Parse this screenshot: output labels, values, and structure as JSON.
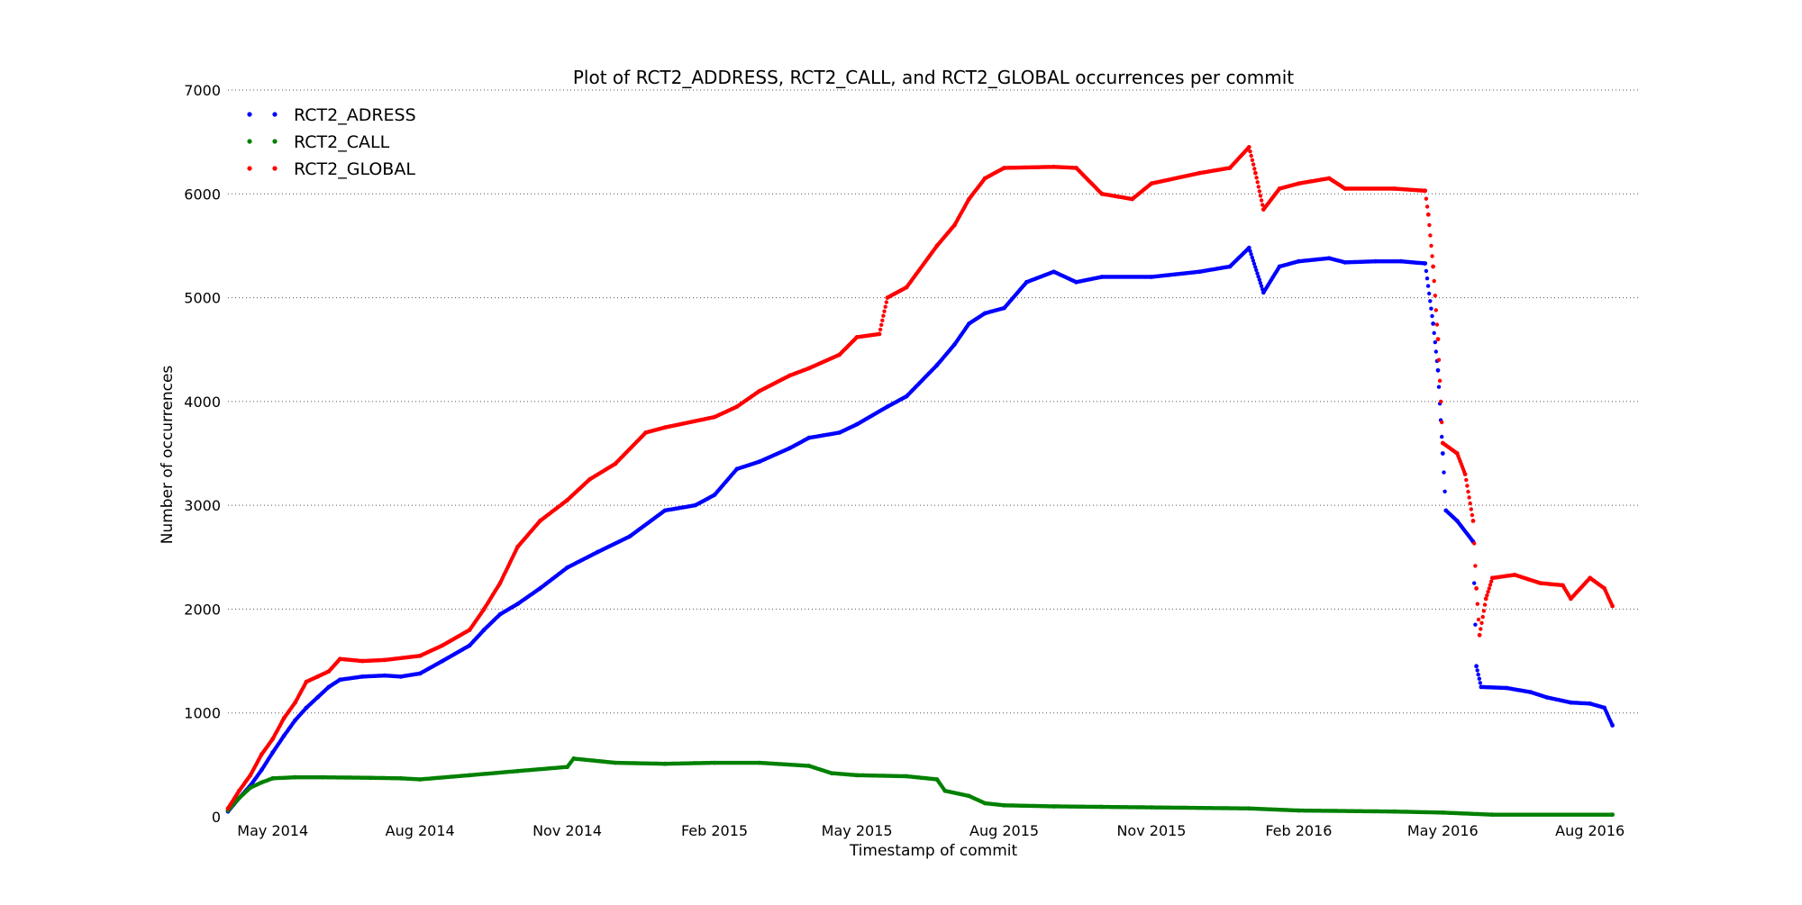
{
  "chart_data": {
    "type": "scatter",
    "title": "Plot of RCT2_ADDRESS, RCT2_CALL, and RCT2_GLOBAL occurrences per commit",
    "xlabel": "Timestamp of commit",
    "ylabel": "Number of occurrences",
    "xlim": [
      "2014-04-03",
      "2016-08-31"
    ],
    "ylim": [
      0,
      7000
    ],
    "x_ticks": [
      {
        "date": "2014-05-01",
        "label": "May 2014"
      },
      {
        "date": "2014-08-01",
        "label": "Aug 2014"
      },
      {
        "date": "2014-11-01",
        "label": "Nov 2014"
      },
      {
        "date": "2015-02-01",
        "label": "Feb 2015"
      },
      {
        "date": "2015-05-01",
        "label": "May 2015"
      },
      {
        "date": "2015-08-01",
        "label": "Aug 2015"
      },
      {
        "date": "2015-11-01",
        "label": "Nov 2015"
      },
      {
        "date": "2016-02-01",
        "label": "Feb 2016"
      },
      {
        "date": "2016-05-01",
        "label": "May 2016"
      },
      {
        "date": "2016-08-01",
        "label": "Aug 2016"
      }
    ],
    "y_ticks": [
      {
        "value": 0,
        "label": "0"
      },
      {
        "value": 1000,
        "label": "1000"
      },
      {
        "value": 2000,
        "label": "2000"
      },
      {
        "value": 3000,
        "label": "3000"
      },
      {
        "value": 4000,
        "label": "4000"
      },
      {
        "value": 5000,
        "label": "5000"
      },
      {
        "value": 6000,
        "label": "6000"
      },
      {
        "value": 7000,
        "label": "7000"
      }
    ],
    "grid": "horizontal dotted",
    "legend": "top-left",
    "series": [
      {
        "name": "RCT2_ADRESS",
        "color": "#0000ff",
        "points": [
          [
            "2014-04-03",
            50
          ],
          [
            "2014-04-10",
            180
          ],
          [
            "2014-04-17",
            300
          ],
          [
            "2014-04-24",
            450
          ],
          [
            "2014-05-01",
            620
          ],
          [
            "2014-05-08",
            780
          ],
          [
            "2014-05-15",
            930
          ],
          [
            "2014-05-22",
            1050
          ],
          [
            "2014-05-29",
            1150
          ],
          [
            "2014-06-05",
            1250
          ],
          [
            "2014-06-12",
            1320
          ],
          [
            "2014-06-26",
            1350
          ],
          [
            "2014-07-10",
            1360
          ],
          [
            "2014-07-20",
            1350
          ],
          [
            "2014-08-01",
            1380
          ],
          [
            "2014-08-15",
            1500
          ],
          [
            "2014-09-01",
            1650
          ],
          [
            "2014-09-10",
            1800
          ],
          [
            "2014-09-20",
            1950
          ],
          [
            "2014-10-01",
            2050
          ],
          [
            "2014-10-15",
            2200
          ],
          [
            "2014-11-01",
            2400
          ],
          [
            "2014-11-20",
            2550
          ],
          [
            "2014-12-10",
            2700
          ],
          [
            "2015-01-01",
            2950
          ],
          [
            "2015-01-20",
            3000
          ],
          [
            "2015-02-01",
            3100
          ],
          [
            "2015-02-15",
            3350
          ],
          [
            "2015-03-01",
            3420
          ],
          [
            "2015-03-20",
            3550
          ],
          [
            "2015-04-01",
            3650
          ],
          [
            "2015-04-20",
            3700
          ],
          [
            "2015-05-01",
            3780
          ],
          [
            "2015-05-20",
            3950
          ],
          [
            "2015-06-01",
            4050
          ],
          [
            "2015-06-20",
            4350
          ],
          [
            "2015-07-01",
            4550
          ],
          [
            "2015-07-10",
            4750
          ],
          [
            "2015-07-20",
            4850
          ],
          [
            "2015-08-01",
            4900
          ],
          [
            "2015-08-15",
            5150
          ],
          [
            "2015-09-01",
            5250
          ],
          [
            "2015-09-15",
            5150
          ],
          [
            "2015-10-01",
            5200
          ],
          [
            "2015-11-01",
            5200
          ],
          [
            "2015-12-01",
            5250
          ],
          [
            "2015-12-20",
            5300
          ],
          [
            "2016-01-01",
            5480
          ],
          [
            "2016-01-10",
            5050
          ],
          [
            "2016-01-20",
            5300
          ],
          [
            "2016-02-01",
            5350
          ],
          [
            "2016-02-20",
            5380
          ],
          [
            "2016-03-01",
            5340
          ],
          [
            "2016-03-20",
            5350
          ],
          [
            "2016-04-05",
            5350
          ],
          [
            "2016-04-20",
            5330
          ],
          [
            "2016-04-25",
            4750
          ],
          [
            "2016-04-28",
            4300
          ],
          [
            "2016-05-01",
            3500
          ],
          [
            "2016-05-03",
            2950
          ],
          [
            "2016-05-10",
            2850
          ],
          [
            "2016-05-20",
            2650
          ],
          [
            "2016-05-22",
            1450
          ],
          [
            "2016-05-25",
            1250
          ],
          [
            "2016-06-10",
            1240
          ],
          [
            "2016-06-25",
            1200
          ],
          [
            "2016-07-05",
            1150
          ],
          [
            "2016-07-20",
            1100
          ],
          [
            "2016-08-01",
            1090
          ],
          [
            "2016-08-10",
            1050
          ],
          [
            "2016-08-15",
            880
          ]
        ]
      },
      {
        "name": "RCT2_CALL",
        "color": "#008000",
        "points": [
          [
            "2014-04-03",
            60
          ],
          [
            "2014-04-10",
            180
          ],
          [
            "2014-04-17",
            280
          ],
          [
            "2014-04-24",
            330
          ],
          [
            "2014-05-01",
            370
          ],
          [
            "2014-05-15",
            380
          ],
          [
            "2014-06-01",
            380
          ],
          [
            "2014-07-01",
            375
          ],
          [
            "2014-07-20",
            370
          ],
          [
            "2014-08-01",
            360
          ],
          [
            "2014-09-01",
            400
          ],
          [
            "2014-10-01",
            440
          ],
          [
            "2014-11-01",
            480
          ],
          [
            "2014-11-05",
            560
          ],
          [
            "2014-12-01",
            520
          ],
          [
            "2015-01-01",
            510
          ],
          [
            "2015-02-01",
            520
          ],
          [
            "2015-03-01",
            520
          ],
          [
            "2015-04-01",
            490
          ],
          [
            "2015-04-15",
            420
          ],
          [
            "2015-05-01",
            400
          ],
          [
            "2015-06-01",
            390
          ],
          [
            "2015-06-20",
            360
          ],
          [
            "2015-06-25",
            250
          ],
          [
            "2015-07-10",
            200
          ],
          [
            "2015-07-20",
            130
          ],
          [
            "2015-08-01",
            110
          ],
          [
            "2015-09-01",
            100
          ],
          [
            "2015-10-01",
            95
          ],
          [
            "2015-11-01",
            90
          ],
          [
            "2016-01-01",
            80
          ],
          [
            "2016-02-01",
            60
          ],
          [
            "2016-04-01",
            50
          ],
          [
            "2016-05-01",
            40
          ],
          [
            "2016-06-01",
            20
          ],
          [
            "2016-08-15",
            20
          ]
        ]
      },
      {
        "name": "RCT2_GLOBAL",
        "color": "#ff0000",
        "points": [
          [
            "2014-04-03",
            80
          ],
          [
            "2014-04-10",
            250
          ],
          [
            "2014-04-17",
            400
          ],
          [
            "2014-04-24",
            600
          ],
          [
            "2014-05-01",
            750
          ],
          [
            "2014-05-08",
            950
          ],
          [
            "2014-05-15",
            1100
          ],
          [
            "2014-05-22",
            1300
          ],
          [
            "2014-05-29",
            1350
          ],
          [
            "2014-06-05",
            1400
          ],
          [
            "2014-06-12",
            1520
          ],
          [
            "2014-06-26",
            1500
          ],
          [
            "2014-07-10",
            1510
          ],
          [
            "2014-08-01",
            1550
          ],
          [
            "2014-08-15",
            1650
          ],
          [
            "2014-09-01",
            1800
          ],
          [
            "2014-09-10",
            2000
          ],
          [
            "2014-09-20",
            2250
          ],
          [
            "2014-10-01",
            2600
          ],
          [
            "2014-10-15",
            2850
          ],
          [
            "2014-11-01",
            3050
          ],
          [
            "2014-11-15",
            3250
          ],
          [
            "2014-12-01",
            3400
          ],
          [
            "2014-12-20",
            3700
          ],
          [
            "2015-01-01",
            3750
          ],
          [
            "2015-02-01",
            3850
          ],
          [
            "2015-02-15",
            3950
          ],
          [
            "2015-03-01",
            4100
          ],
          [
            "2015-03-20",
            4250
          ],
          [
            "2015-04-01",
            4320
          ],
          [
            "2015-04-20",
            4450
          ],
          [
            "2015-05-01",
            4620
          ],
          [
            "2015-05-15",
            4650
          ],
          [
            "2015-05-20",
            5000
          ],
          [
            "2015-06-01",
            5100
          ],
          [
            "2015-06-20",
            5500
          ],
          [
            "2015-07-01",
            5700
          ],
          [
            "2015-07-10",
            5950
          ],
          [
            "2015-07-20",
            6150
          ],
          [
            "2015-08-01",
            6250
          ],
          [
            "2015-09-01",
            6260
          ],
          [
            "2015-09-15",
            6250
          ],
          [
            "2015-10-01",
            6000
          ],
          [
            "2015-10-20",
            5950
          ],
          [
            "2015-11-01",
            6100
          ],
          [
            "2015-12-01",
            6200
          ],
          [
            "2015-12-20",
            6250
          ],
          [
            "2016-01-01",
            6450
          ],
          [
            "2016-01-05",
            6200
          ],
          [
            "2016-01-10",
            5850
          ],
          [
            "2016-01-20",
            6050
          ],
          [
            "2016-02-01",
            6100
          ],
          [
            "2016-02-20",
            6150
          ],
          [
            "2016-03-01",
            6050
          ],
          [
            "2016-04-01",
            6050
          ],
          [
            "2016-04-20",
            6030
          ],
          [
            "2016-04-22",
            5800
          ],
          [
            "2016-04-25",
            5300
          ],
          [
            "2016-04-28",
            4600
          ],
          [
            "2016-05-01",
            3600
          ],
          [
            "2016-05-10",
            3500
          ],
          [
            "2016-05-15",
            3300
          ],
          [
            "2016-05-20",
            2850
          ],
          [
            "2016-05-22",
            2200
          ],
          [
            "2016-05-24",
            1750
          ],
          [
            "2016-05-28",
            2100
          ],
          [
            "2016-06-01",
            2300
          ],
          [
            "2016-06-15",
            2330
          ],
          [
            "2016-07-01",
            2250
          ],
          [
            "2016-07-15",
            2230
          ],
          [
            "2016-07-20",
            2100
          ],
          [
            "2016-08-01",
            2300
          ],
          [
            "2016-08-10",
            2200
          ],
          [
            "2016-08-15",
            2030
          ]
        ]
      }
    ]
  }
}
